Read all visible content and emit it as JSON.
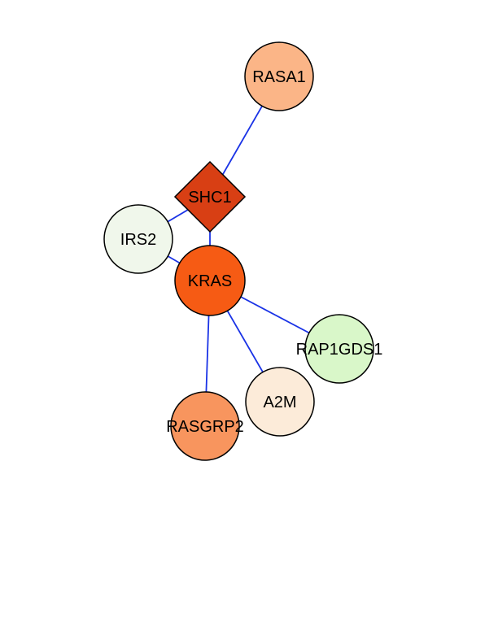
{
  "network": {
    "nodes": [
      {
        "id": "RASA1",
        "label": "RASA1",
        "shape": "circle",
        "color": "#fbb587"
      },
      {
        "id": "SHC1",
        "label": "SHC1",
        "shape": "diamond",
        "color": "#d83f14"
      },
      {
        "id": "IRS2",
        "label": "IRS2",
        "shape": "circle",
        "color": "#f0f7eb"
      },
      {
        "id": "KRAS",
        "label": "KRAS",
        "shape": "circle",
        "color": "#f65b14"
      },
      {
        "id": "RAP1GDS1",
        "label": "RAP1GDS1",
        "shape": "circle",
        "color": "#d9f7c9"
      },
      {
        "id": "A2M",
        "label": "A2M",
        "shape": "circle",
        "color": "#fcebd9"
      },
      {
        "id": "RASGRP2",
        "label": "RASGRP2",
        "shape": "circle",
        "color": "#f8955e"
      }
    ],
    "edges": [
      {
        "source": "RASA1",
        "target": "SHC1"
      },
      {
        "source": "SHC1",
        "target": "IRS2"
      },
      {
        "source": "SHC1",
        "target": "KRAS"
      },
      {
        "source": "IRS2",
        "target": "KRAS"
      },
      {
        "source": "KRAS",
        "target": "RAP1GDS1"
      },
      {
        "source": "KRAS",
        "target": "A2M"
      },
      {
        "source": "KRAS",
        "target": "RASGRP2"
      }
    ],
    "edge_color": "#1a33e6"
  }
}
